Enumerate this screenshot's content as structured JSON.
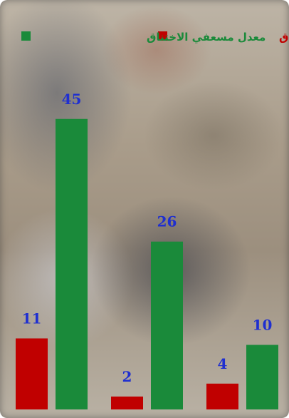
{
  "chart_data": {
    "type": "bar",
    "categories": [
      "",
      "",
      ""
    ],
    "series": [
      {
        "name": "معدل وفيات الاختناق",
        "color": "#c00000",
        "values": [
          11,
          2,
          4
        ]
      },
      {
        "name": "معدل مسعفي الاختناق",
        "color": "#1a8a3a",
        "values": [
          45,
          26,
          10
        ]
      }
    ],
    "ylim": [
      0,
      50
    ],
    "grid": false,
    "legend_position": "top",
    "value_label_color": "#1f2fd0",
    "background": "photo of rescue workers (civil protection)"
  }
}
